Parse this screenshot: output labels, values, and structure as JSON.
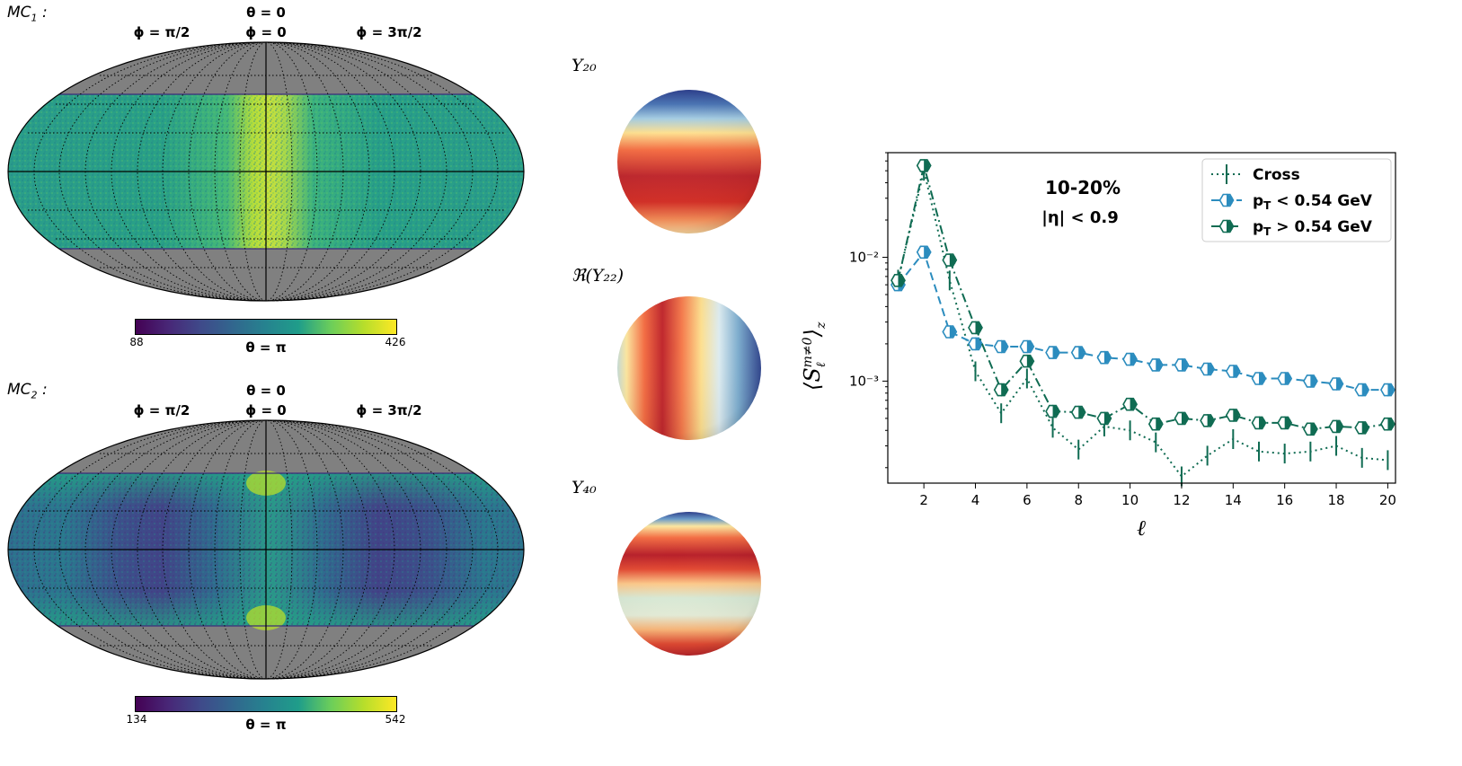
{
  "maps": [
    {
      "label_main": "MC",
      "label_sub": "1",
      "label_suffix": " :",
      "top_theta": "θ = 0",
      "phi_left": "ϕ = π/2",
      "phi_center": "ϕ = 0",
      "phi_right": "ϕ = 3π/2",
      "bottom_theta": "θ = π",
      "colorbar_min": "88",
      "colorbar_max": "426",
      "colormap": "viridis"
    },
    {
      "label_main": "MC",
      "label_sub": "2",
      "label_suffix": " :",
      "top_theta": "θ = 0",
      "phi_left": "ϕ = π/2",
      "phi_center": "ϕ = 0",
      "phi_right": "ϕ = 3π/2",
      "bottom_theta": "θ = π",
      "colorbar_min": "134",
      "colorbar_max": "542",
      "colormap": "viridis"
    }
  ],
  "spheres": [
    {
      "label": "Y₂₀",
      "colormap": "RdYlBu"
    },
    {
      "label": "ℜ(Y₂₂)",
      "colormap": "RdYlBu"
    },
    {
      "label": "Y₄₀",
      "colormap": "RdYlBu"
    }
  ],
  "chart_data": {
    "type": "line",
    "title": "",
    "annotations": [
      "10-20%",
      "|η| < 0.9"
    ],
    "xlabel": "ℓ",
    "ylabel": "⟨S_ℓ^{m≠0}⟩_z",
    "yscale": "log",
    "xlim": [
      0.6,
      20.3
    ],
    "ylim": [
      0.00015,
      0.07
    ],
    "xticks": [
      2,
      4,
      6,
      8,
      10,
      12,
      14,
      16,
      18,
      20
    ],
    "yticks": [
      {
        "value": 0.01,
        "label": "10⁻²"
      },
      {
        "value": 0.001,
        "label": "10⁻³"
      }
    ],
    "legend_position": "top-right",
    "x": [
      1,
      2,
      3,
      4,
      5,
      6,
      7,
      8,
      9,
      10,
      11,
      12,
      13,
      14,
      15,
      16,
      17,
      18,
      19,
      20
    ],
    "series": [
      {
        "name": "Cross",
        "color": "#0f6b52",
        "linestyle": "dotted",
        "marker": "vbar",
        "values": [
          0.0066,
          0.05,
          0.0065,
          0.0012,
          0.00055,
          0.00105,
          0.00042,
          0.00028,
          0.00043,
          0.0004,
          0.00032,
          0.00017,
          0.00025,
          0.00034,
          0.00027,
          0.00026,
          0.00027,
          0.0003,
          0.00024,
          0.00023
        ]
      },
      {
        "name": "p_T < 0.54 GeV",
        "color": "#2b8cbe",
        "linestyle": "dashed",
        "marker": "hex",
        "values": [
          0.006,
          0.011,
          0.0025,
          0.002,
          0.0019,
          0.0019,
          0.0017,
          0.0017,
          0.00155,
          0.0015,
          0.00135,
          0.00135,
          0.00125,
          0.0012,
          0.00105,
          0.00105,
          0.001,
          0.00095,
          0.00085,
          0.00085
        ]
      },
      {
        "name": "p_T > 0.54 GeV",
        "color": "#0f6b52",
        "linestyle": "dashdot",
        "marker": "hex",
        "values": [
          0.0065,
          0.055,
          0.0095,
          0.0027,
          0.00085,
          0.00145,
          0.00057,
          0.00056,
          0.0005,
          0.00065,
          0.00045,
          0.0005,
          0.00048,
          0.00053,
          0.00046,
          0.00046,
          0.00041,
          0.00043,
          0.00042,
          0.00045
        ]
      }
    ]
  }
}
